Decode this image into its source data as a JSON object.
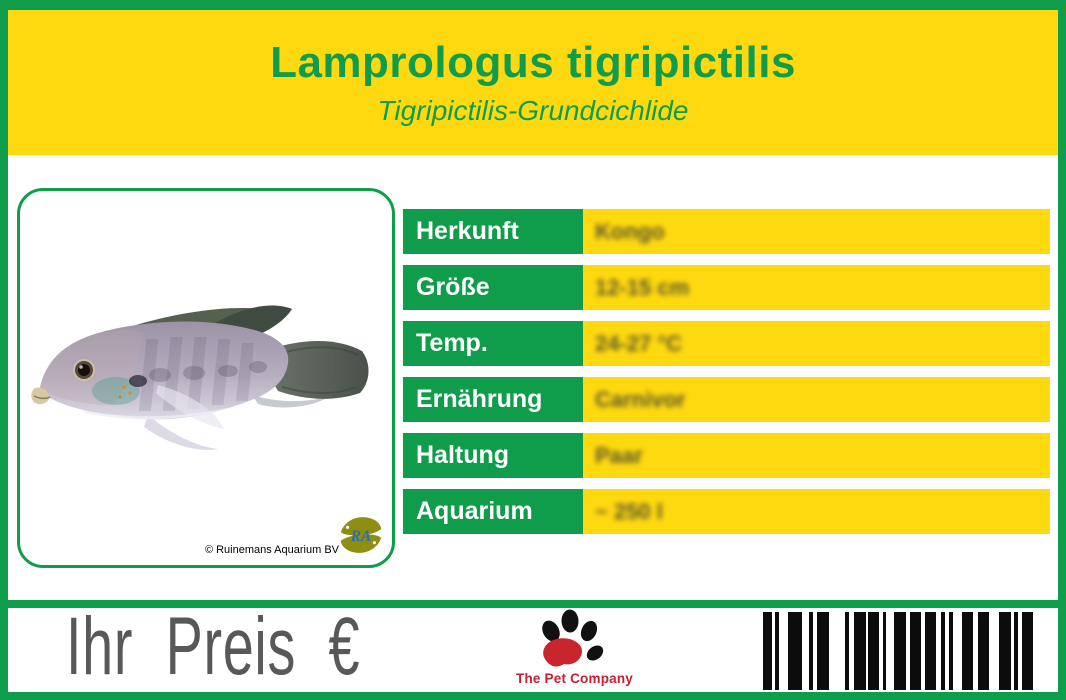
{
  "header": {
    "title": "Lamprologus tigripictilis",
    "subtitle": "Tigripictilis-Grundcichlide"
  },
  "photo": {
    "copyright": "© Ruinemans Aquarium BV",
    "logo_monogram": "RA"
  },
  "table": {
    "rows": [
      {
        "label": "Herkunft",
        "value": "Kongo"
      },
      {
        "label": "Größe",
        "value": "12-15 cm"
      },
      {
        "label": "Temp.",
        "value": "24-27 °C"
      },
      {
        "label": "Ernährung",
        "value": "Carnivor"
      },
      {
        "label": "Haltung",
        "value": "Paar"
      },
      {
        "label": "Aquarium",
        "value": "~ 250 l"
      }
    ]
  },
  "footer": {
    "price_label": "Ihr Preis €",
    "brand_name": "The Pet Company",
    "barcode_bars": [
      [
        9,
        3
      ],
      [
        4,
        9
      ],
      [
        14,
        7
      ],
      [
        4,
        4
      ],
      [
        12,
        16
      ],
      [
        4,
        5
      ],
      [
        12,
        2
      ],
      [
        11,
        4
      ],
      [
        3,
        8
      ],
      [
        12,
        4
      ],
      [
        11,
        4
      ],
      [
        11,
        5
      ],
      [
        4,
        4
      ],
      [
        4,
        9
      ],
      [
        11,
        5
      ],
      [
        11,
        10
      ],
      [
        12,
        3
      ],
      [
        4,
        4
      ],
      [
        11,
        0
      ]
    ]
  },
  "colors": {
    "brand_green": "#0F9D4B",
    "brand_yellow": "#FFD90F",
    "price_gray": "#57585A",
    "brand_red": "#C32032"
  }
}
